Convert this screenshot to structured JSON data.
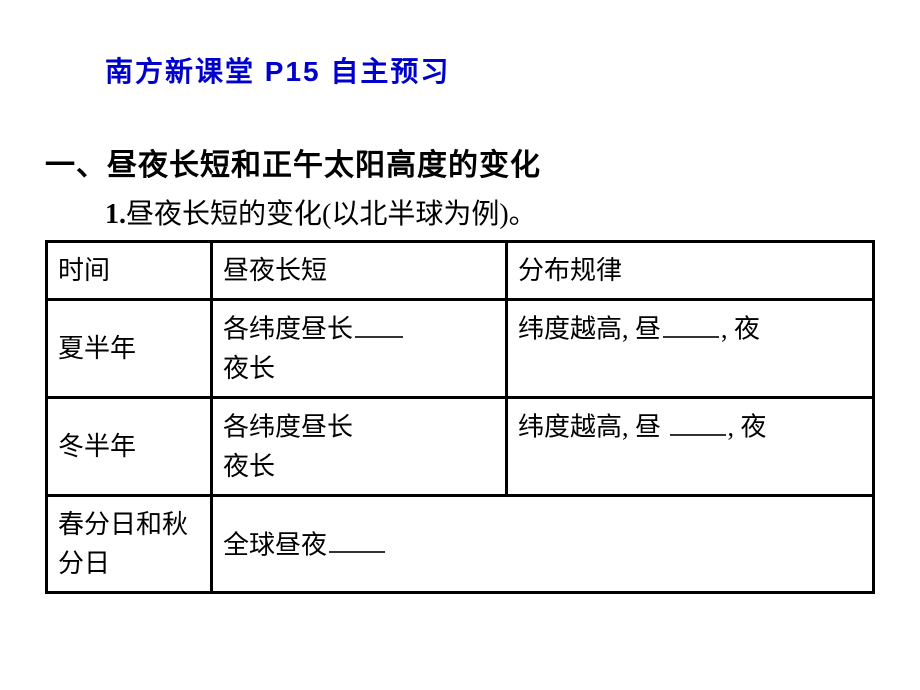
{
  "header": {
    "text": "南方新课堂  P15  自主预习",
    "color": "#0000cc",
    "fontsize": 28
  },
  "section": {
    "number": "一、",
    "title": "昼夜长短和正午太阳高度的变化"
  },
  "subsection": {
    "number": "1.",
    "title": "昼夜长短的变化(以北半球为例)。"
  },
  "table": {
    "border_color": "#000000",
    "border_width": 3,
    "text_color": "#000000",
    "fontsize": 26,
    "headers": {
      "c1": "时间",
      "c2": "昼夜长短",
      "c3": "分布规律"
    },
    "rows": [
      {
        "c1": "夏半年",
        "c2_pre": "各纬度昼长",
        "c2_post": "夜长",
        "c3_pre": "纬度越高, 昼",
        "c3_mid": ", 夜"
      },
      {
        "c1": "冬半年",
        "c2_pre": "各纬度昼长",
        "c2_post": "夜长",
        "c3_pre": "纬度越高, 昼",
        "c3_mid": ", 夜"
      },
      {
        "c1": "春分日和秋分日",
        "c2_pre": "全球昼夜"
      }
    ]
  }
}
